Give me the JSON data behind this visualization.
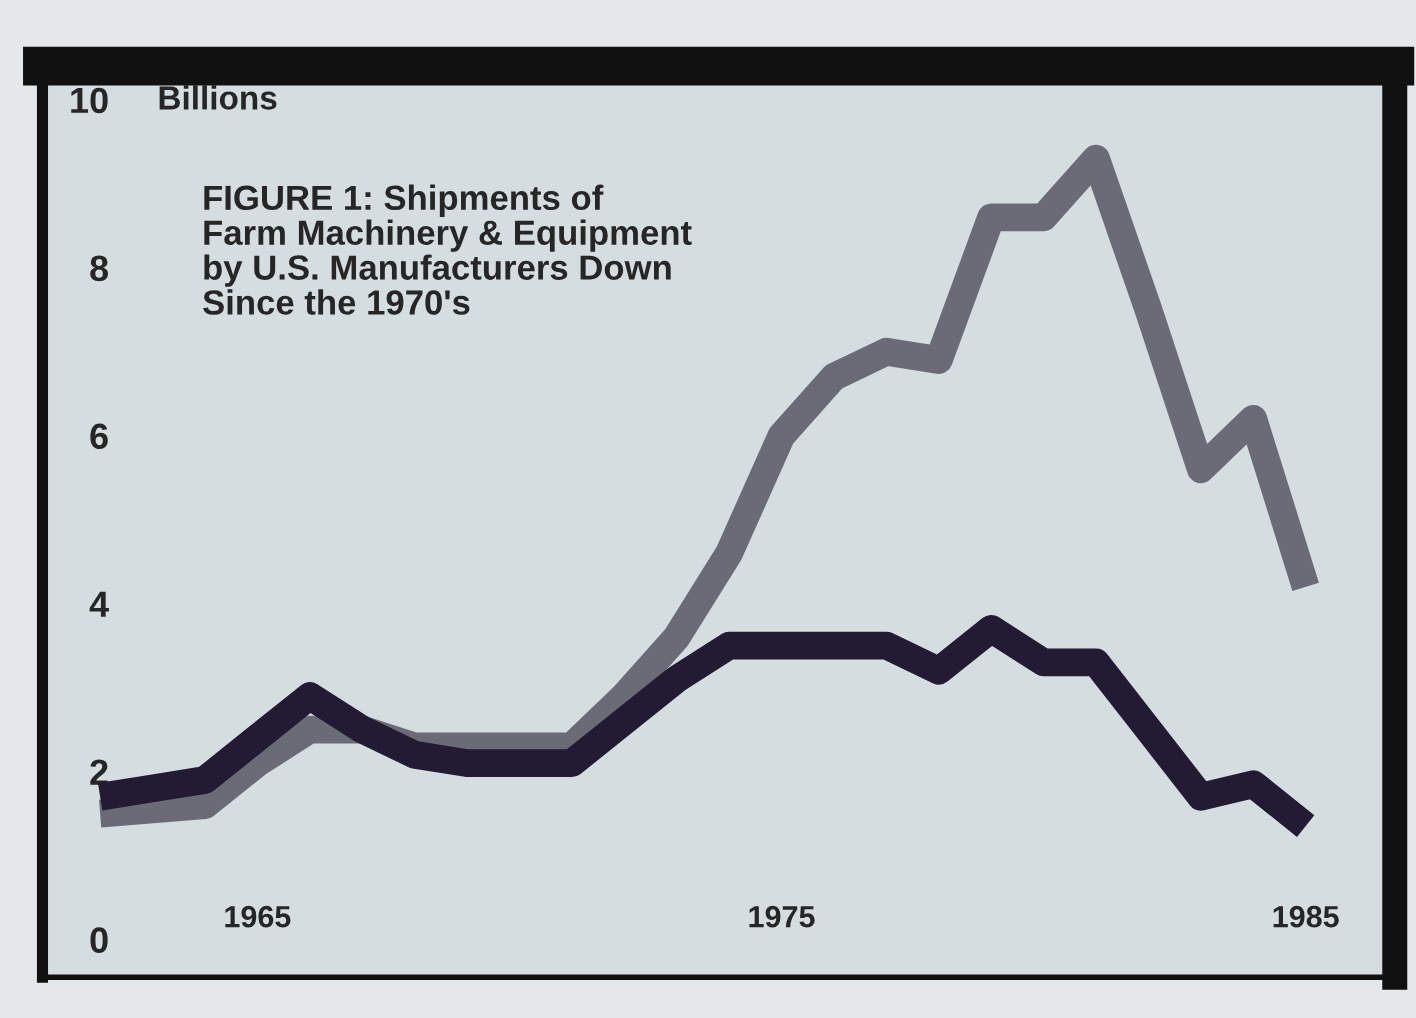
{
  "chart_data": {
    "type": "line",
    "title": "FIGURE 1: Shipments of\nFarm Machinery & Equipment\nby U.S. Manufacturers Down\nSince the 1970's",
    "ylabel": "Billions",
    "x": [
      1962,
      1963,
      1964,
      1965,
      1966,
      1967,
      1968,
      1969,
      1970,
      1971,
      1972,
      1973,
      1974,
      1975,
      1976,
      1977,
      1978,
      1979,
      1980,
      1981,
      1982,
      1983,
      1984,
      1985
    ],
    "series": [
      {
        "color": "#6b6b78",
        "values": [
          1.5,
          1.55,
          1.6,
          2.1,
          2.5,
          2.5,
          2.3,
          2.3,
          2.3,
          2.3,
          2.9,
          3.6,
          4.6,
          6.0,
          6.7,
          7.0,
          6.9,
          8.6,
          8.6,
          9.3,
          7.5,
          5.6,
          6.2,
          4.2
        ]
      },
      {
        "color": "#231a33",
        "values": [
          1.7,
          1.8,
          1.9,
          2.4,
          2.9,
          2.5,
          2.2,
          2.1,
          2.1,
          2.1,
          2.6,
          3.1,
          3.5,
          3.5,
          3.5,
          3.5,
          3.2,
          3.7,
          3.3,
          3.3,
          2.5,
          1.7,
          1.85,
          1.35
        ]
      }
    ],
    "xlim": [
      1960.9,
      1986.7
    ],
    "xticks": [
      1965,
      1975,
      1985
    ],
    "ylim": [
      -0.45,
      10.4
    ],
    "yticks": [
      0,
      2,
      4,
      6,
      8,
      10
    ],
    "grid": false,
    "legend": false,
    "marker": "none",
    "line_style": "solid"
  }
}
